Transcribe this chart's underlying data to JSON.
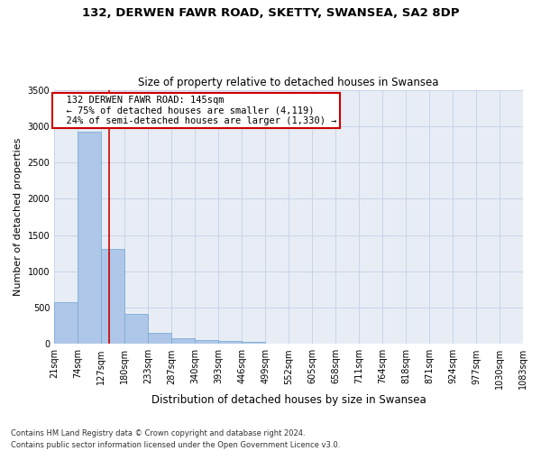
{
  "title_line1": "132, DERWEN FAWR ROAD, SKETTY, SWANSEA, SA2 8DP",
  "title_line2": "Size of property relative to detached houses in Swansea",
  "xlabel": "Distribution of detached houses by size in Swansea",
  "ylabel": "Number of detached properties",
  "footnote": "Contains HM Land Registry data © Crown copyright and database right 2024.\nContains public sector information licensed under the Open Government Licence v3.0.",
  "bar_color": "#aec6e8",
  "bar_edge_color": "#7aafd4",
  "grid_color": "#c8d4e8",
  "annotation_box_color": "#cc0000",
  "property_line_color": "#cc0000",
  "bins": [
    21,
    74,
    127,
    180,
    233,
    287,
    340,
    393,
    446,
    499,
    552,
    605,
    658,
    711,
    764,
    818,
    871,
    924,
    977,
    1030,
    1083
  ],
  "bin_labels": [
    "21sqm",
    "74sqm",
    "127sqm",
    "180sqm",
    "233sqm",
    "287sqm",
    "340sqm",
    "393sqm",
    "446sqm",
    "499sqm",
    "552sqm",
    "605sqm",
    "658sqm",
    "711sqm",
    "764sqm",
    "818sqm",
    "871sqm",
    "924sqm",
    "977sqm",
    "1030sqm",
    "1083sqm"
  ],
  "counts": [
    570,
    2920,
    1310,
    410,
    155,
    75,
    60,
    45,
    35,
    0,
    0,
    0,
    0,
    0,
    0,
    0,
    0,
    0,
    0,
    0
  ],
  "property_size": 145,
  "annotation_text_line1": "132 DERWEN FAWR ROAD: 145sqm",
  "annotation_text_line2": "← 75% of detached houses are smaller (4,119)",
  "annotation_text_line3": "24% of semi-detached houses are larger (1,330) →",
  "ylim": [
    0,
    3500
  ],
  "yticks": [
    0,
    500,
    1000,
    1500,
    2000,
    2500,
    3000,
    3500
  ],
  "background_color": "#e8edf5",
  "title_fontsize": 9.5,
  "subtitle_fontsize": 8.5,
  "ylabel_fontsize": 8,
  "xlabel_fontsize": 8.5,
  "tick_fontsize": 7,
  "footnote_fontsize": 6,
  "annot_fontsize": 7.5
}
